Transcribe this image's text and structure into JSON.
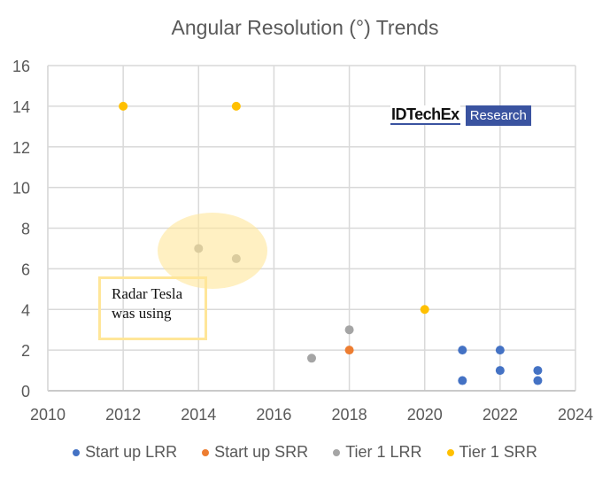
{
  "chart_data": {
    "type": "scatter",
    "title": "Angular Resolution (°) Trends",
    "xlabel": "",
    "ylabel": "",
    "xlim": [
      2010,
      2024
    ],
    "ylim": [
      0,
      16
    ],
    "x_ticks": [
      "2010",
      "2012",
      "2014",
      "2016",
      "2018",
      "2020",
      "2022",
      "2024"
    ],
    "y_ticks": [
      "0",
      "2",
      "4",
      "6",
      "8",
      "10",
      "12",
      "14",
      "16"
    ],
    "grid": true,
    "legend_position": "bottom",
    "series": [
      {
        "name": "Start up LRR",
        "color": "#4472C4",
        "points": [
          [
            2021,
            2
          ],
          [
            2021,
            0.5
          ],
          [
            2022,
            2
          ],
          [
            2022,
            1
          ],
          [
            2023,
            1
          ],
          [
            2023,
            0.5
          ]
        ]
      },
      {
        "name": "Start up SRR",
        "color": "#ED7D31",
        "points": [
          [
            2018,
            2
          ]
        ]
      },
      {
        "name": "Tier 1 LRR",
        "color": "#A5A5A5",
        "points": [
          [
            2014,
            7
          ],
          [
            2015,
            6.5
          ],
          [
            2017,
            1.6
          ],
          [
            2018,
            3
          ]
        ]
      },
      {
        "name": "Tier 1 SRR",
        "color": "#FFC000",
        "points": [
          [
            2012,
            14
          ],
          [
            2015,
            14
          ],
          [
            2020,
            4
          ]
        ]
      }
    ],
    "annotations": [
      {
        "type": "ellipse-highlight",
        "center": [
          2014.4,
          6.9
        ],
        "color": "#FFE699"
      },
      {
        "type": "text-box",
        "text": "Radar Tesla\nwas using",
        "position": [
          2012.6,
          4.2
        ]
      }
    ]
  },
  "watermark": {
    "brand": "IDTechEx",
    "badge": "Research"
  }
}
